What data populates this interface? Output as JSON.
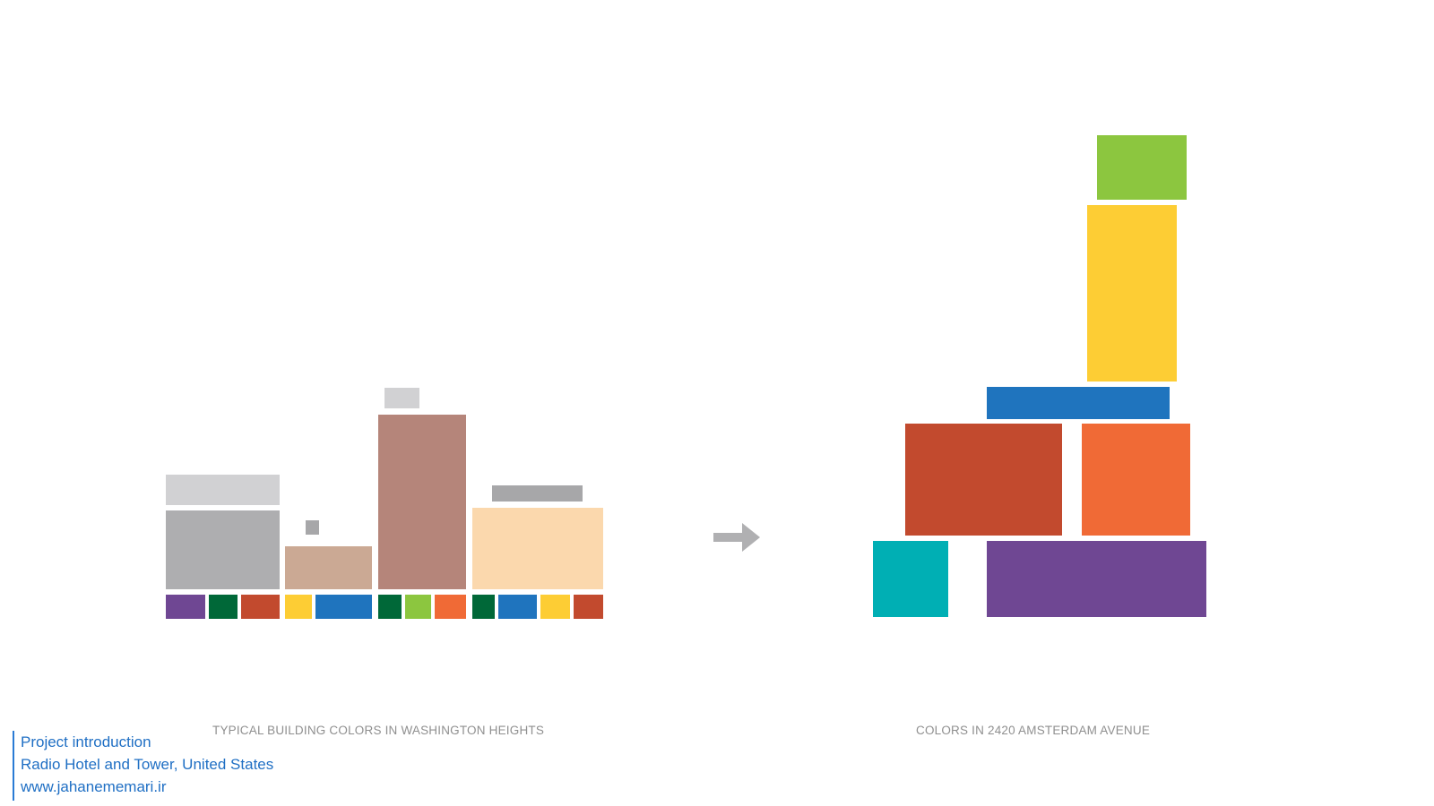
{
  "diagram": {
    "left_caption": "TYPICAL BUILDING COLORS IN WASHINGTON HEIGHTS",
    "right_caption": "COLORS IN 2420 AMSTERDAM AVENUE",
    "arrow_icon": "right-arrow-icon",
    "palette": {
      "purple": "#6f4793",
      "dark_green": "#006838",
      "brick_red": "#c24a2e",
      "yellow": "#fdcd34",
      "blue": "#1f74be",
      "lime_green": "#8cc63f",
      "orange": "#f06a36",
      "teal": "#00afb4",
      "light_gray": "#d1d1d3",
      "mid_gray": "#aeaeb0",
      "gray": "#a7a7a9",
      "tan": "#cba994",
      "mauve": "#b5857a",
      "peach": "#fbd8ad"
    }
  },
  "credit": {
    "line1": "Project introduction",
    "line2": "Radio Hotel and Tower, United States",
    "line3": "www.jahanememari.ir"
  }
}
